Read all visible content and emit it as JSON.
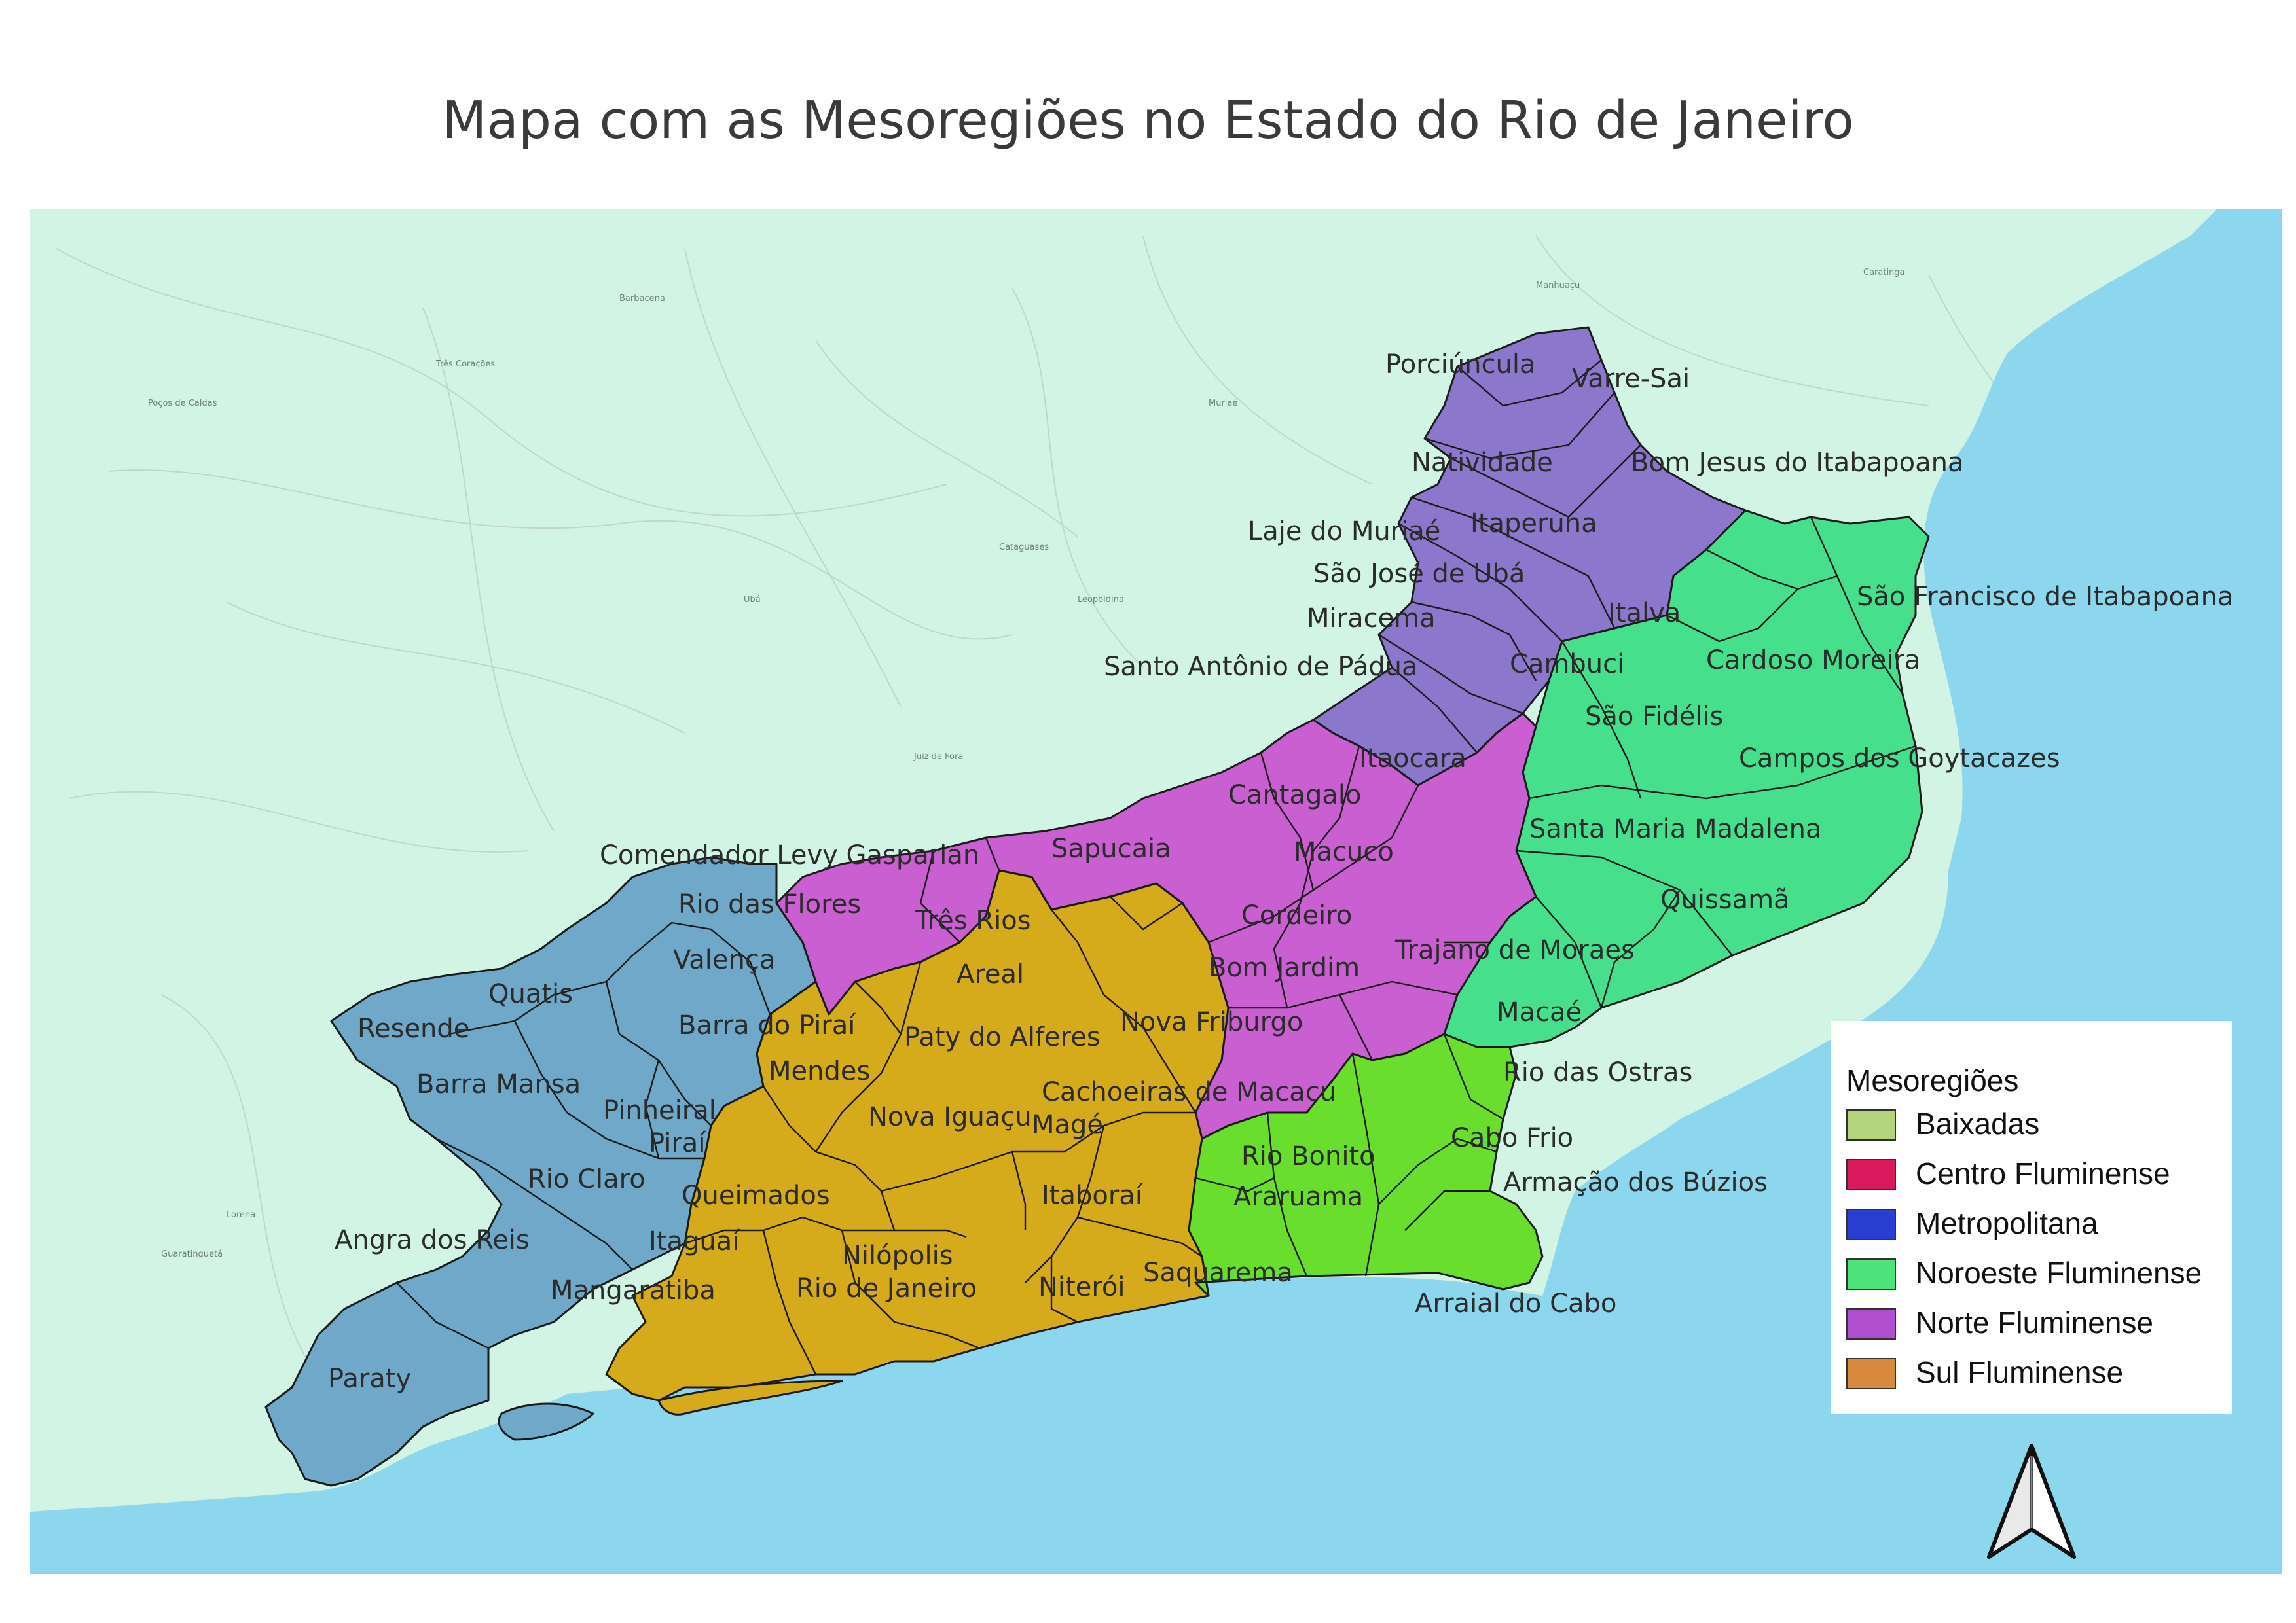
{
  "title": "Mapa com as Mesoregiões no Estado do Rio de Janeiro",
  "colors": {
    "land": "#d2f4e4",
    "sea": "#8dd7ee",
    "noroeste_fill": "#8b78cc",
    "norte_fill": "#c95fd1",
    "leste_fill": "#46e08d",
    "baixadas_fill": "#6ade2c",
    "metropolitana_fill": "#d5aa1b",
    "sul_fill": "#6fa8c8"
  },
  "map": {
    "background_places": [
      "Juiz de Fora",
      "Muriaé",
      "Ubá",
      "Três Corações",
      "Poços de Caldas",
      "Lorena",
      "Guaratinguetá",
      "Cataguases",
      "Leopoldina",
      "Manhuaçu",
      "Barbacena",
      "Caratinga"
    ],
    "municipality_labels": [
      "Porciúncula",
      "Varre-Sai",
      "Natividade",
      "Bom Jesus do Itabapoana",
      "Itaperuna",
      "Laje do Muriaé",
      "São José de Ubá",
      "Miracema",
      "Italva",
      "São Francisco de Itabapoana",
      "Santo Antônio de Pádua",
      "Cambuci",
      "Cardoso Moreira",
      "São Fidélis",
      "Itaocara",
      "Campos dos Goytacazes",
      "Cantagalo",
      "Santa Maria Madalena",
      "Comendador Levy Gasparian",
      "Sapucaia",
      "Macuco",
      "Rio das Flores",
      "Três Rios",
      "Cordeiro",
      "Quissamã",
      "Valença",
      "Trajano de Moraes",
      "Areal",
      "Bom Jardim",
      "Quatis",
      "Macaé",
      "Barra do Piraí",
      "Resende",
      "Paty do Alferes",
      "Nova Friburgo",
      "Mendes",
      "Rio das Ostras",
      "Barra Mansa",
      "Cachoeiras de Macacu",
      "Pinheiral",
      "Nova Iguaçu",
      "Magé",
      "Piraí",
      "Cabo Frio",
      "Rio Bonito",
      "Rio Claro",
      "Queimados",
      "Itaboraí",
      "Araruama",
      "Armação dos Búzios",
      "Angra dos Reis",
      "Itaguaí",
      "Nilópolis",
      "Saquarema",
      "Mangaratiba",
      "Rio de Janeiro",
      "Niterói",
      "Arraial do Cabo",
      "Paraty"
    ]
  },
  "legend": {
    "title": "Mesoregiões",
    "items": [
      {
        "label": "Baixadas",
        "color": "#b3d67d"
      },
      {
        "label": "Centro Fluminense",
        "color": "#d81a5c"
      },
      {
        "label": "Metropolitana",
        "color": "#2a3ed1"
      },
      {
        "label": "Noroeste Fluminense",
        "color": "#4ee27a"
      },
      {
        "label": "Norte Fluminense",
        "color": "#b04fd0"
      },
      {
        "label": "Sul Fluminense",
        "color": "#d88a3c"
      }
    ]
  },
  "north_arrow": {
    "icon": "north-arrow-icon"
  }
}
